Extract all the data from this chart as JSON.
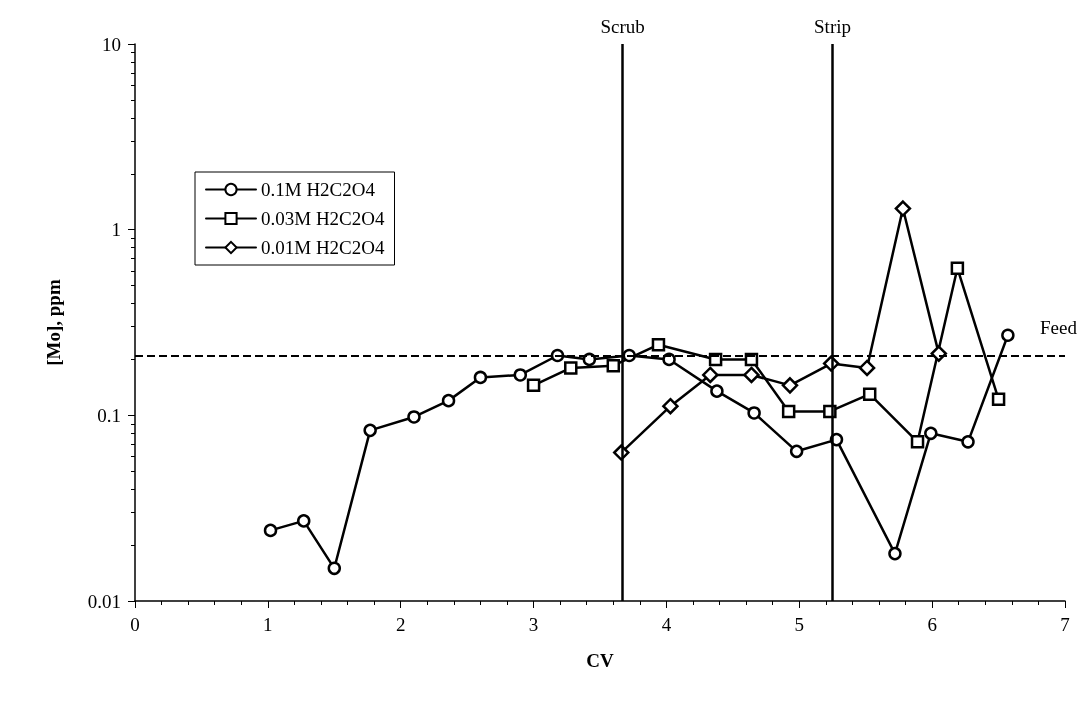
{
  "chart_data": {
    "type": "line",
    "xlabel": "CV",
    "ylabel": "[Mo], ppm",
    "log": "y",
    "xlim": [
      0,
      7
    ],
    "xticks": [
      0,
      1,
      2,
      3,
      4,
      5,
      6,
      7
    ],
    "ylim": [
      0.01,
      10
    ],
    "yticks": [
      0.01,
      0.1,
      1,
      10
    ],
    "grid": false,
    "legend": "left",
    "line_style": "solid",
    "series": [
      {
        "name": "0.1M H2C2O4",
        "color": "#000000",
        "marker": "circle",
        "x": [
          1.02,
          1.27,
          1.5,
          1.77,
          2.1,
          2.36,
          2.6,
          2.9,
          3.18,
          3.42,
          3.72,
          4.02,
          4.38,
          4.66,
          4.98,
          5.28,
          5.72,
          5.99,
          6.27,
          6.57
        ],
        "values": [
          0.024,
          0.027,
          0.015,
          0.083,
          0.098,
          0.12,
          0.16,
          0.165,
          0.21,
          0.2,
          0.21,
          0.2,
          0.135,
          0.103,
          0.064,
          0.074,
          0.018,
          0.08,
          0.072,
          0.27
        ]
      },
      {
        "name": "0.03M H2C2O4",
        "color": "#000000",
        "marker": "square",
        "x": [
          3.0,
          3.28,
          3.6,
          3.94,
          4.37,
          4.64,
          4.92,
          5.23,
          5.53,
          5.89,
          6.19,
          6.5
        ],
        "values": [
          0.145,
          0.18,
          0.185,
          0.24,
          0.2,
          0.2,
          0.105,
          0.105,
          0.13,
          0.072,
          0.62,
          0.122
        ]
      },
      {
        "name": "0.01M H2C2O4",
        "color": "#000000",
        "marker": "diamond",
        "x": [
          3.66,
          4.03,
          4.33,
          4.64,
          4.93,
          5.24,
          5.51,
          5.78,
          6.05
        ],
        "values": [
          0.063,
          0.112,
          0.165,
          0.165,
          0.145,
          0.19,
          0.18,
          1.3,
          0.215
        ]
      }
    ],
    "ref_lines": [
      {
        "axis": "y",
        "value": 0.21,
        "label": "Feed",
        "color": "#000000",
        "line_style": "dashed"
      },
      {
        "axis": "x",
        "value": 3.67,
        "label": "Scrub",
        "color": "#000000",
        "line_style": "solid"
      },
      {
        "axis": "x",
        "value": 5.25,
        "label": "Strip",
        "color": "#000000",
        "line_style": "solid"
      }
    ]
  }
}
